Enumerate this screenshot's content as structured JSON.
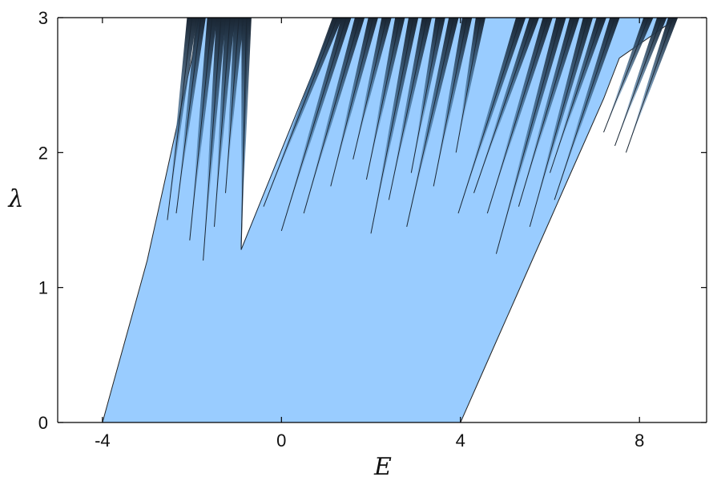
{
  "chart_data": {
    "type": "area",
    "title": "",
    "xlabel": "E",
    "ylabel": "λ",
    "xlim": [
      -5,
      9.5
    ],
    "ylim": [
      0,
      3
    ],
    "xticks": [
      -4,
      0,
      4,
      8
    ],
    "xtick_labels": [
      "-4",
      "0",
      "4",
      "8"
    ],
    "yticks": [
      0,
      1,
      2,
      3
    ],
    "ytick_labels": [
      "0",
      "1",
      "2",
      "3"
    ],
    "grid": false,
    "legend": "none",
    "colors": {
      "fill": "#99ccff",
      "band_edge": "#1a2633",
      "band_mid": "#3d6b94"
    },
    "series": [
      {
        "description_role": "left edge of filled region",
        "x": [
          -4.0,
          -3.75,
          -3.5,
          -3.25,
          -3.0,
          -2.8,
          -2.6,
          -2.4,
          -2.2,
          -2.0,
          -1.85
        ],
        "y": [
          0.0,
          0.3,
          0.6,
          0.9,
          1.2,
          1.5,
          1.8,
          2.1,
          2.4,
          2.7,
          3.0
        ]
      },
      {
        "description_role": "right edge of filled region",
        "x": [
          4.0,
          4.4,
          4.8,
          5.2,
          5.6,
          6.0,
          6.4,
          6.8,
          7.2,
          7.55
        ],
        "y": [
          0.0,
          0.3,
          0.6,
          0.9,
          1.2,
          1.5,
          1.8,
          2.1,
          2.4,
          2.7
        ]
      }
    ],
    "gap": {
      "vertex": [
        -0.9,
        1.28
      ],
      "top_left": [
        -0.75,
        3.0
      ],
      "top_right": [
        1.2,
        3.0
      ]
    },
    "bands": [
      {
        "e_top": -2.0,
        "e_bottom": -2.55,
        "y_bottom": 1.5
      },
      {
        "e_top": -1.8,
        "e_bottom": -2.35,
        "y_bottom": 1.55
      },
      {
        "e_top": -1.55,
        "e_bottom": -2.05,
        "y_bottom": 1.35
      },
      {
        "e_top": -1.35,
        "e_bottom": -1.75,
        "y_bottom": 1.2
      },
      {
        "e_top": -1.15,
        "e_bottom": -1.5,
        "y_bottom": 1.45
      },
      {
        "e_top": -0.95,
        "e_bottom": -1.25,
        "y_bottom": 1.7
      },
      {
        "e_top": -0.78,
        "e_bottom": -0.9,
        "y_bottom": 1.3
      },
      {
        "e_top": 1.25,
        "e_bottom": -0.4,
        "y_bottom": 1.6
      },
      {
        "e_top": 1.45,
        "e_bottom": 0.0,
        "y_bottom": 1.42
      },
      {
        "e_top": 1.75,
        "e_bottom": 0.5,
        "y_bottom": 1.55
      },
      {
        "e_top": 2.05,
        "e_bottom": 1.1,
        "y_bottom": 1.75
      },
      {
        "e_top": 2.35,
        "e_bottom": 1.6,
        "y_bottom": 1.95
      },
      {
        "e_top": 2.65,
        "e_bottom": 1.9,
        "y_bottom": 1.8
      },
      {
        "e_top": 2.95,
        "e_bottom": 2.0,
        "y_bottom": 1.4
      },
      {
        "e_top": 3.25,
        "e_bottom": 2.4,
        "y_bottom": 1.65
      },
      {
        "e_top": 3.55,
        "e_bottom": 2.9,
        "y_bottom": 1.85
      },
      {
        "e_top": 3.85,
        "e_bottom": 2.8,
        "y_bottom": 1.45
      },
      {
        "e_top": 4.15,
        "e_bottom": 3.4,
        "y_bottom": 1.75
      },
      {
        "e_top": 4.45,
        "e_bottom": 3.9,
        "y_bottom": 2.0
      },
      {
        "e_top": 5.35,
        "e_bottom": 3.95,
        "y_bottom": 1.55
      },
      {
        "e_top": 5.65,
        "e_bottom": 4.3,
        "y_bottom": 1.7
      },
      {
        "e_top": 5.95,
        "e_bottom": 4.6,
        "y_bottom": 1.55
      },
      {
        "e_top": 6.25,
        "e_bottom": 4.8,
        "y_bottom": 1.25
      },
      {
        "e_top": 6.55,
        "e_bottom": 5.3,
        "y_bottom": 1.6
      },
      {
        "e_top": 6.85,
        "e_bottom": 5.55,
        "y_bottom": 1.45
      },
      {
        "e_top": 7.15,
        "e_bottom": 6.0,
        "y_bottom": 1.85
      },
      {
        "e_top": 7.45,
        "e_bottom": 6.1,
        "y_bottom": 1.65
      },
      {
        "e_top": 8.2,
        "e_bottom": 7.2,
        "y_bottom": 2.15
      },
      {
        "e_top": 8.5,
        "e_bottom": 7.45,
        "y_bottom": 2.05
      },
      {
        "e_top": 8.75,
        "e_bottom": 7.7,
        "y_bottom": 2.0
      }
    ]
  }
}
